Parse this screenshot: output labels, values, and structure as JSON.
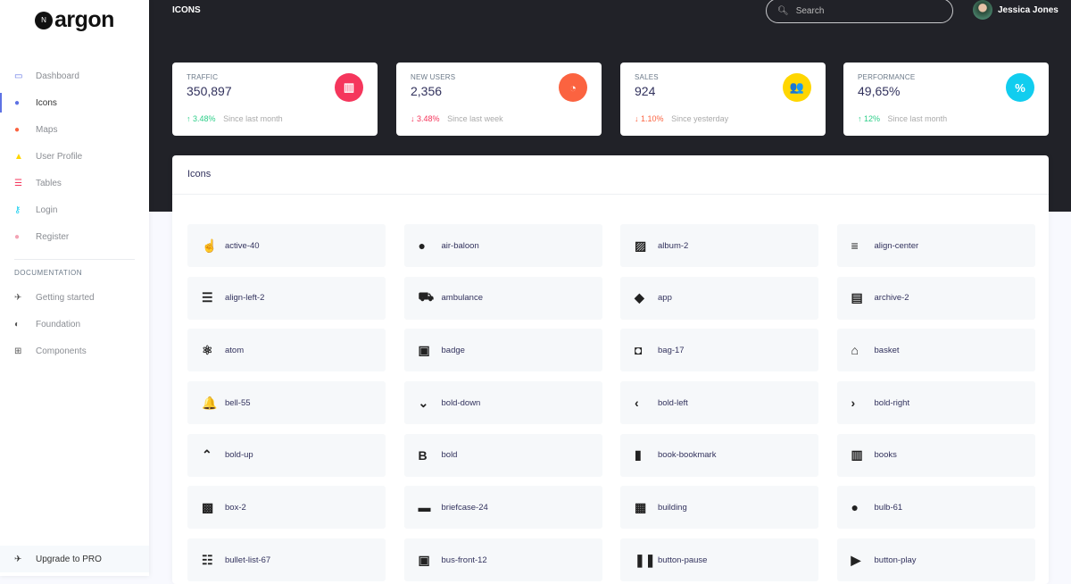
{
  "brand": {
    "name": "argon",
    "mark": "N"
  },
  "sidebar": {
    "items": [
      {
        "label": "Dashboard",
        "icon": "tv-icon",
        "glyph": "▭",
        "color": "#5e72e4"
      },
      {
        "label": "Icons",
        "icon": "planet-icon",
        "glyph": "●",
        "color": "#5e72e4",
        "active": true
      },
      {
        "label": "Maps",
        "icon": "pin-icon",
        "glyph": "●",
        "color": "#fb6340"
      },
      {
        "label": "User Profile",
        "icon": "user-icon",
        "glyph": "▲",
        "color": "#ffd600"
      },
      {
        "label": "Tables",
        "icon": "bullet-list-icon",
        "glyph": "☰",
        "color": "#f5365c"
      },
      {
        "label": "Login",
        "icon": "key-icon",
        "glyph": "⚷",
        "color": "#11cdef"
      },
      {
        "label": "Register",
        "icon": "circle-user-icon",
        "glyph": "●",
        "color": "#f3a4b5"
      }
    ],
    "doc_heading": "DOCUMENTATION",
    "doc_items": [
      {
        "label": "Getting started",
        "icon": "spaceship-icon",
        "glyph": "✈"
      },
      {
        "label": "Foundation",
        "icon": "palette-icon",
        "glyph": "◐"
      },
      {
        "label": "Components",
        "icon": "ui-icon",
        "glyph": "⊞"
      }
    ],
    "upgrade": {
      "label": "Upgrade to PRO",
      "icon": "spaceship-icon",
      "glyph": "✈"
    }
  },
  "header": {
    "title": "ICONS",
    "search_placeholder": "Search",
    "user_name": "Jessica Jones"
  },
  "stats": [
    {
      "label": "TRAFFIC",
      "value": "350,897",
      "change": "3.48%",
      "direction": "up",
      "note": "Since last month",
      "icon": "chart-bar-icon",
      "glyph": "▥",
      "color": "#f5365c",
      "change_color": "#2dce89"
    },
    {
      "label": "NEW USERS",
      "value": "2,356",
      "change": "3.48%",
      "direction": "down",
      "note": "Since last week",
      "icon": "chart-pie-icon",
      "glyph": "◔",
      "color": "#fb6340",
      "change_color": "#f5365c"
    },
    {
      "label": "SALES",
      "value": "924",
      "change": "1.10%",
      "direction": "down",
      "note": "Since yesterday",
      "icon": "users-icon",
      "glyph": "👥",
      "color": "#ffd600",
      "change_color": "#fb6340"
    },
    {
      "label": "PERFORMANCE",
      "value": "49,65%",
      "change": "12%",
      "direction": "up",
      "note": "Since last month",
      "icon": "percent-icon",
      "glyph": "%",
      "color": "#11cdef",
      "change_color": "#2dce89"
    }
  ],
  "icons_card": {
    "title": "Icons",
    "icons": [
      {
        "name": "active-40",
        "glyph": "☝"
      },
      {
        "name": "air-baloon",
        "glyph": "●"
      },
      {
        "name": "album-2",
        "glyph": "▨"
      },
      {
        "name": "align-center",
        "glyph": "≡"
      },
      {
        "name": "align-left-2",
        "glyph": "☰"
      },
      {
        "name": "ambulance",
        "glyph": "⛟"
      },
      {
        "name": "app",
        "glyph": "◆"
      },
      {
        "name": "archive-2",
        "glyph": "▤"
      },
      {
        "name": "atom",
        "glyph": "⚛"
      },
      {
        "name": "badge",
        "glyph": "▣"
      },
      {
        "name": "bag-17",
        "glyph": "◘"
      },
      {
        "name": "basket",
        "glyph": "⌂"
      },
      {
        "name": "bell-55",
        "glyph": "🔔"
      },
      {
        "name": "bold-down",
        "glyph": "⌄"
      },
      {
        "name": "bold-left",
        "glyph": "‹"
      },
      {
        "name": "bold-right",
        "glyph": "›"
      },
      {
        "name": "bold-up",
        "glyph": "⌃"
      },
      {
        "name": "bold",
        "glyph": "B"
      },
      {
        "name": "book-bookmark",
        "glyph": "▮"
      },
      {
        "name": "books",
        "glyph": "▥"
      },
      {
        "name": "box-2",
        "glyph": "▩"
      },
      {
        "name": "briefcase-24",
        "glyph": "▬"
      },
      {
        "name": "building",
        "glyph": "▦"
      },
      {
        "name": "bulb-61",
        "glyph": "●"
      },
      {
        "name": "bullet-list-67",
        "glyph": "☷"
      },
      {
        "name": "bus-front-12",
        "glyph": "▣"
      },
      {
        "name": "button-pause",
        "glyph": "❚❚"
      },
      {
        "name": "button-play",
        "glyph": "▶"
      }
    ]
  }
}
